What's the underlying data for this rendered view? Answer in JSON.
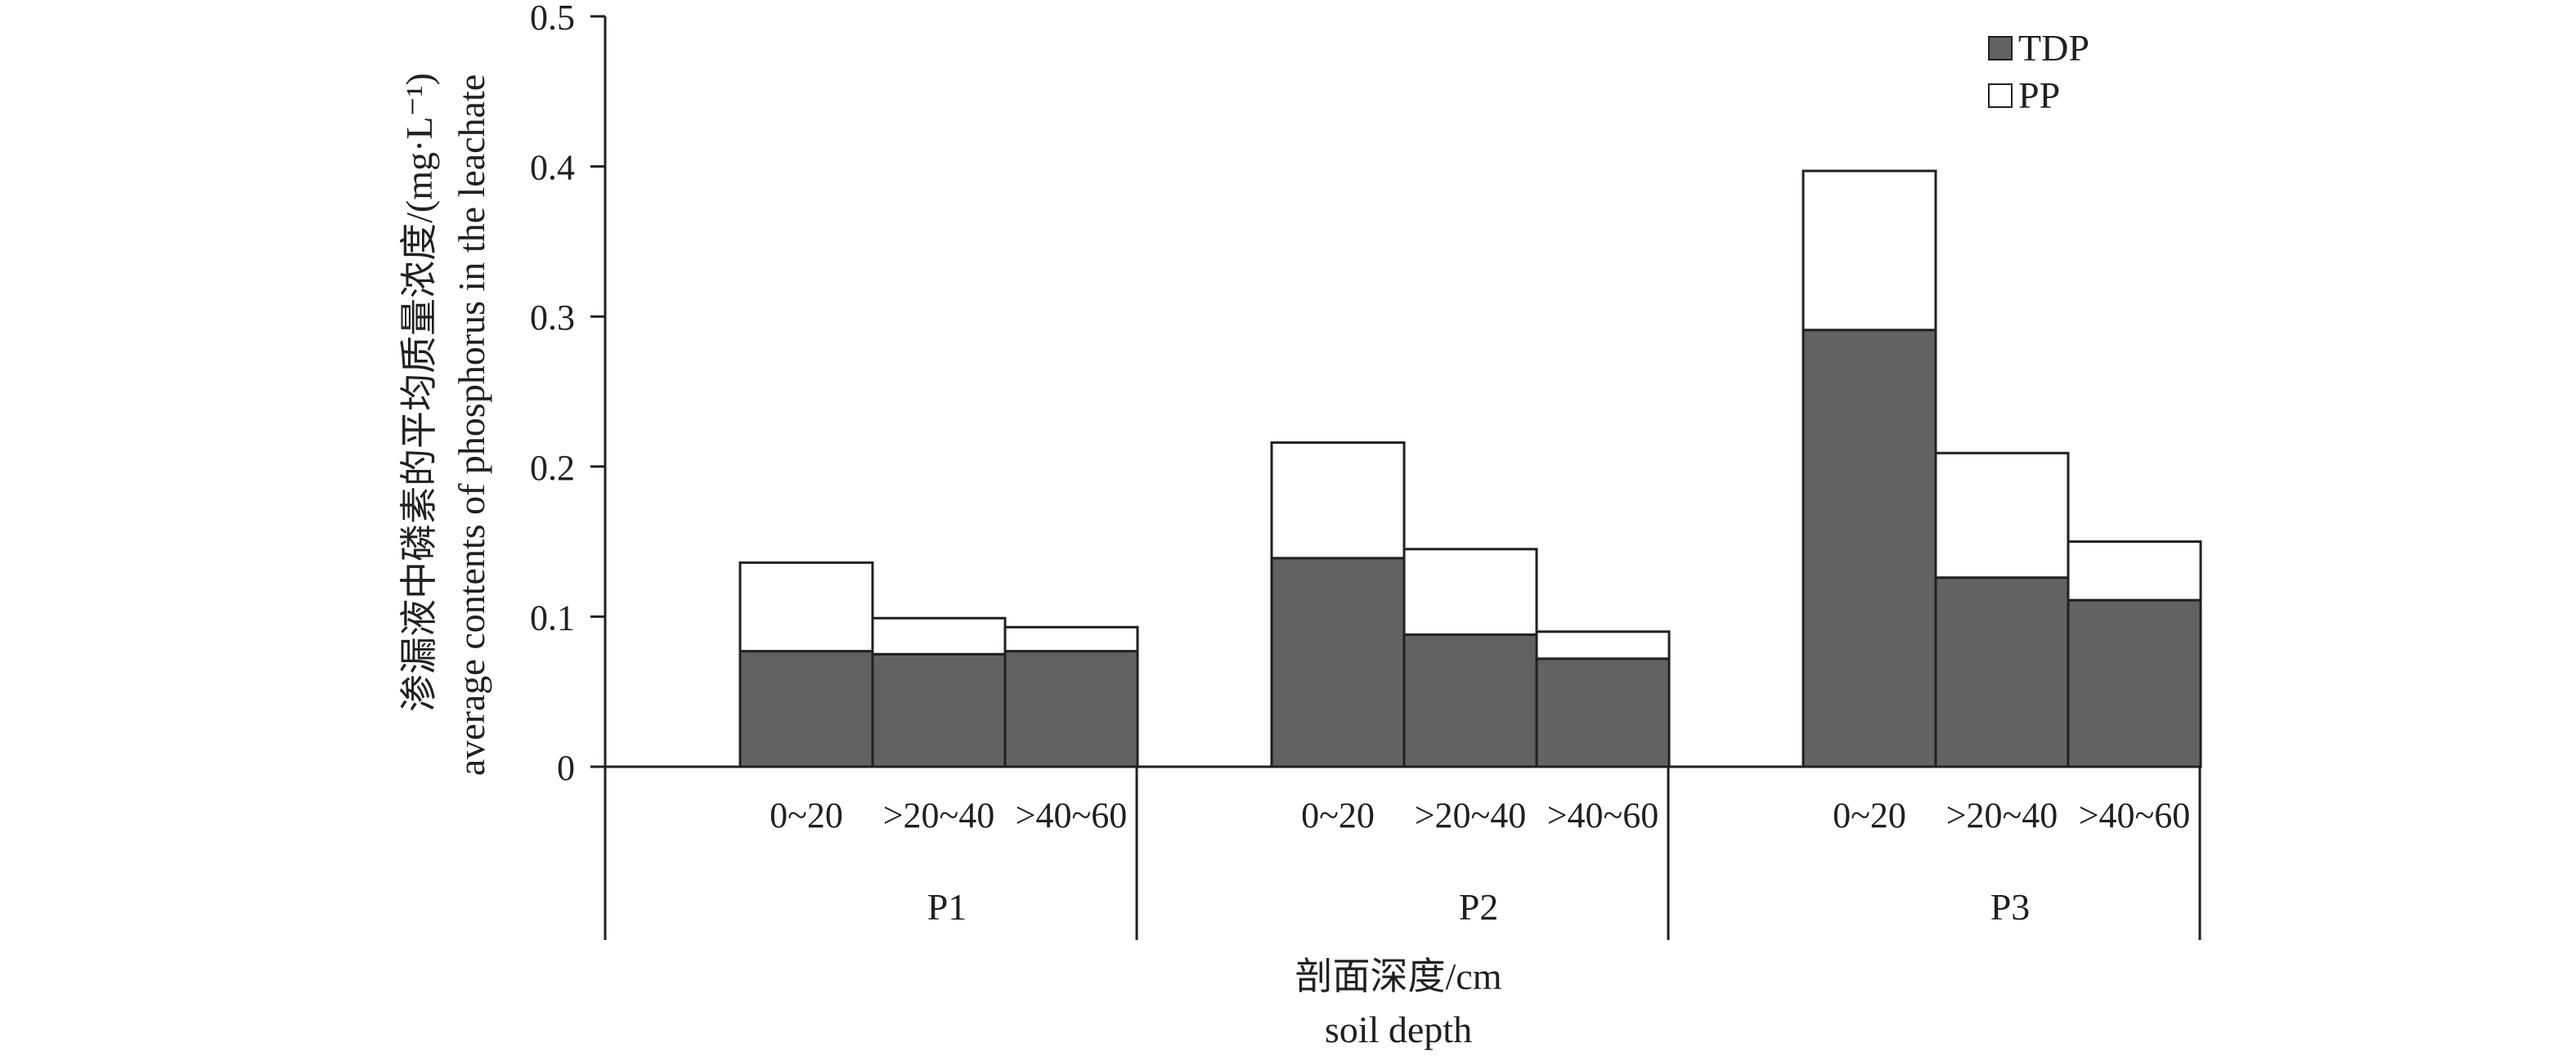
{
  "chart_data": {
    "type": "bar",
    "stacked": true,
    "groups": [
      "P1",
      "P2",
      "P3"
    ],
    "categories": [
      "0~20",
      ">20~40",
      ">40~60"
    ],
    "series": [
      {
        "name": "TDP",
        "color": "#636162",
        "values": [
          [
            0.077,
            0.075,
            0.077
          ],
          [
            0.139,
            0.088,
            0.072
          ],
          [
            0.291,
            0.126,
            0.111
          ]
        ]
      },
      {
        "name": "PP",
        "color": "#ffffff",
        "values": [
          [
            0.059,
            0.024,
            0.016
          ],
          [
            0.077,
            0.057,
            0.018
          ],
          [
            0.106,
            0.083,
            0.039
          ]
        ]
      }
    ],
    "ylim": [
      0,
      0.5
    ],
    "yticks": [
      "0",
      "0.1",
      "0.2",
      "0.3",
      "0.4",
      "0.5"
    ],
    "ylabel_cn": "渗漏液中磷素的平均质量浓度/(mg·L⁻¹)",
    "ylabel_en": "average contents of phosphorus in the leachate",
    "xlabel_cn": "剖面深度/cm",
    "xlabel_en": "soil depth",
    "legend_position": "top-right",
    "grid": false
  }
}
